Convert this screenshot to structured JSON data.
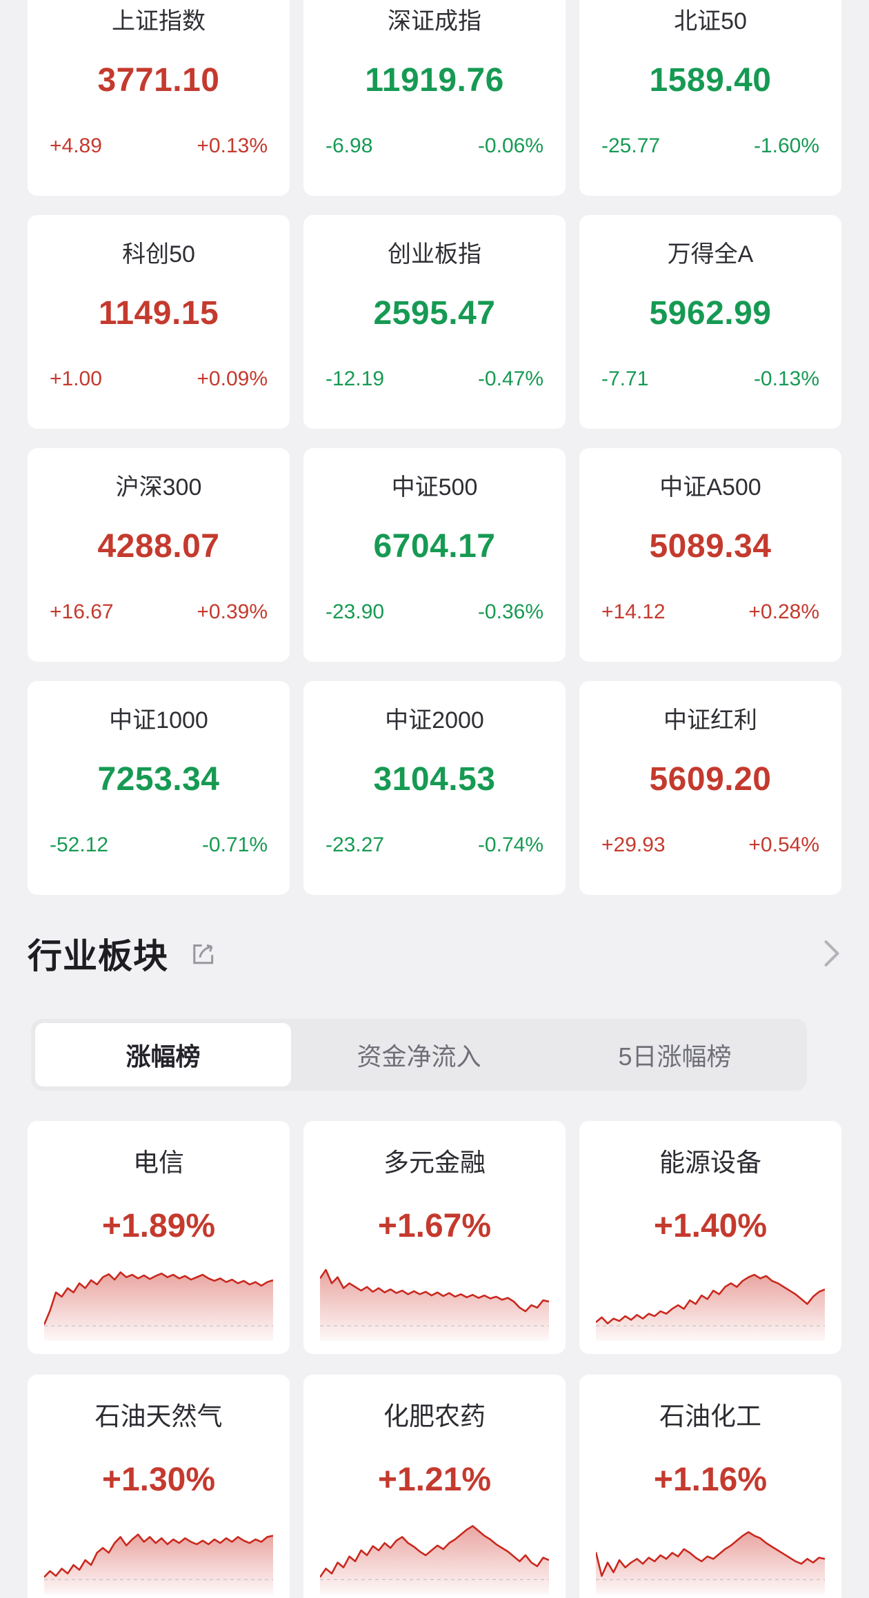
{
  "colors": {
    "up": "#c43a2e",
    "down": "#169a53",
    "spark_line": "#c9281e",
    "spark_fill_top": "rgba(203,42,32,0.42)",
    "spark_fill_bottom": "rgba(203,42,32,0.03)",
    "baseline_dash": "#c6c6ca",
    "page_bg": "#f1f1f3",
    "card_bg": "#ffffff"
  },
  "indices": [
    {
      "name": "上证指数",
      "value": "3771.10",
      "change": "+4.89",
      "pct": "+0.13%",
      "dir": "up"
    },
    {
      "name": "深证成指",
      "value": "11919.76",
      "change": "-6.98",
      "pct": "-0.06%",
      "dir": "down"
    },
    {
      "name": "北证50",
      "value": "1589.40",
      "change": "-25.77",
      "pct": "-1.60%",
      "dir": "down"
    },
    {
      "name": "科创50",
      "value": "1149.15",
      "change": "+1.00",
      "pct": "+0.09%",
      "dir": "up"
    },
    {
      "name": "创业板指",
      "value": "2595.47",
      "change": "-12.19",
      "pct": "-0.47%",
      "dir": "down"
    },
    {
      "name": "万得全A",
      "value": "5962.99",
      "change": "-7.71",
      "pct": "-0.13%",
      "dir": "down"
    },
    {
      "name": "沪深300",
      "value": "4288.07",
      "change": "+16.67",
      "pct": "+0.39%",
      "dir": "up"
    },
    {
      "name": "中证500",
      "value": "6704.17",
      "change": "-23.90",
      "pct": "-0.36%",
      "dir": "down"
    },
    {
      "name": "中证A500",
      "value": "5089.34",
      "change": "+14.12",
      "pct": "+0.28%",
      "dir": "up"
    },
    {
      "name": "中证1000",
      "value": "7253.34",
      "change": "-52.12",
      "pct": "-0.71%",
      "dir": "down"
    },
    {
      "name": "中证2000",
      "value": "3104.53",
      "change": "-23.27",
      "pct": "-0.74%",
      "dir": "down"
    },
    {
      "name": "中证红利",
      "value": "5609.20",
      "change": "+29.93",
      "pct": "+0.54%",
      "dir": "up"
    }
  ],
  "sector_section": {
    "title": "行业板块",
    "tabs": [
      {
        "label": "涨幅榜",
        "active": true
      },
      {
        "label": "资金净流入",
        "active": false
      },
      {
        "label": "5日涨幅榜",
        "active": false
      }
    ],
    "sectors": [
      {
        "name": "电信",
        "pct": "+1.89%",
        "dir": "up",
        "spark": [
          0.02,
          0.25,
          0.55,
          0.48,
          0.62,
          0.55,
          0.7,
          0.62,
          0.75,
          0.68,
          0.8,
          0.85,
          0.76,
          0.88,
          0.8,
          0.84,
          0.78,
          0.83,
          0.77,
          0.82,
          0.86,
          0.8,
          0.84,
          0.78,
          0.82,
          0.76,
          0.8,
          0.84,
          0.78,
          0.74,
          0.78,
          0.72,
          0.76,
          0.7,
          0.74,
          0.68,
          0.72,
          0.66,
          0.72,
          0.75
        ]
      },
      {
        "name": "多元金融",
        "pct": "+1.67%",
        "dir": "up",
        "spark": [
          0.78,
          0.92,
          0.7,
          0.8,
          0.62,
          0.7,
          0.64,
          0.58,
          0.64,
          0.56,
          0.62,
          0.55,
          0.6,
          0.54,
          0.58,
          0.52,
          0.57,
          0.52,
          0.56,
          0.5,
          0.55,
          0.49,
          0.54,
          0.48,
          0.52,
          0.47,
          0.51,
          0.46,
          0.5,
          0.45,
          0.48,
          0.43,
          0.46,
          0.4,
          0.3,
          0.24,
          0.34,
          0.3,
          0.42,
          0.4
        ]
      },
      {
        "name": "能源设备",
        "pct": "+1.40%",
        "dir": "up",
        "spark": [
          0.06,
          0.14,
          0.04,
          0.12,
          0.08,
          0.16,
          0.1,
          0.18,
          0.12,
          0.2,
          0.16,
          0.24,
          0.2,
          0.28,
          0.34,
          0.28,
          0.42,
          0.36,
          0.5,
          0.44,
          0.58,
          0.52,
          0.64,
          0.7,
          0.64,
          0.74,
          0.8,
          0.84,
          0.78,
          0.82,
          0.74,
          0.7,
          0.64,
          0.58,
          0.52,
          0.44,
          0.36,
          0.48,
          0.56,
          0.6
        ]
      },
      {
        "name": "石油天然气",
        "pct": "+1.30%",
        "dir": "up",
        "spark": [
          0.04,
          0.14,
          0.06,
          0.18,
          0.1,
          0.24,
          0.16,
          0.32,
          0.24,
          0.44,
          0.52,
          0.44,
          0.6,
          0.7,
          0.56,
          0.66,
          0.74,
          0.62,
          0.7,
          0.6,
          0.68,
          0.58,
          0.66,
          0.6,
          0.68,
          0.62,
          0.58,
          0.64,
          0.58,
          0.66,
          0.6,
          0.68,
          0.62,
          0.7,
          0.64,
          0.6,
          0.66,
          0.62,
          0.7,
          0.72
        ]
      },
      {
        "name": "化肥农药",
        "pct": "+1.21%",
        "dir": "up",
        "spark": [
          0.04,
          0.18,
          0.1,
          0.28,
          0.2,
          0.38,
          0.3,
          0.48,
          0.4,
          0.55,
          0.48,
          0.6,
          0.52,
          0.64,
          0.7,
          0.6,
          0.54,
          0.46,
          0.4,
          0.48,
          0.56,
          0.5,
          0.6,
          0.66,
          0.74,
          0.82,
          0.88,
          0.8,
          0.72,
          0.66,
          0.58,
          0.52,
          0.46,
          0.38,
          0.3,
          0.4,
          0.28,
          0.22,
          0.36,
          0.32
        ]
      },
      {
        "name": "石油化工",
        "pct": "+1.16%",
        "dir": "up",
        "spark": [
          0.45,
          0.06,
          0.28,
          0.12,
          0.32,
          0.2,
          0.28,
          0.34,
          0.26,
          0.36,
          0.3,
          0.4,
          0.34,
          0.44,
          0.38,
          0.5,
          0.44,
          0.36,
          0.3,
          0.38,
          0.34,
          0.42,
          0.5,
          0.56,
          0.64,
          0.72,
          0.78,
          0.72,
          0.68,
          0.6,
          0.54,
          0.48,
          0.42,
          0.36,
          0.3,
          0.26,
          0.34,
          0.28,
          0.36,
          0.34
        ]
      }
    ]
  }
}
